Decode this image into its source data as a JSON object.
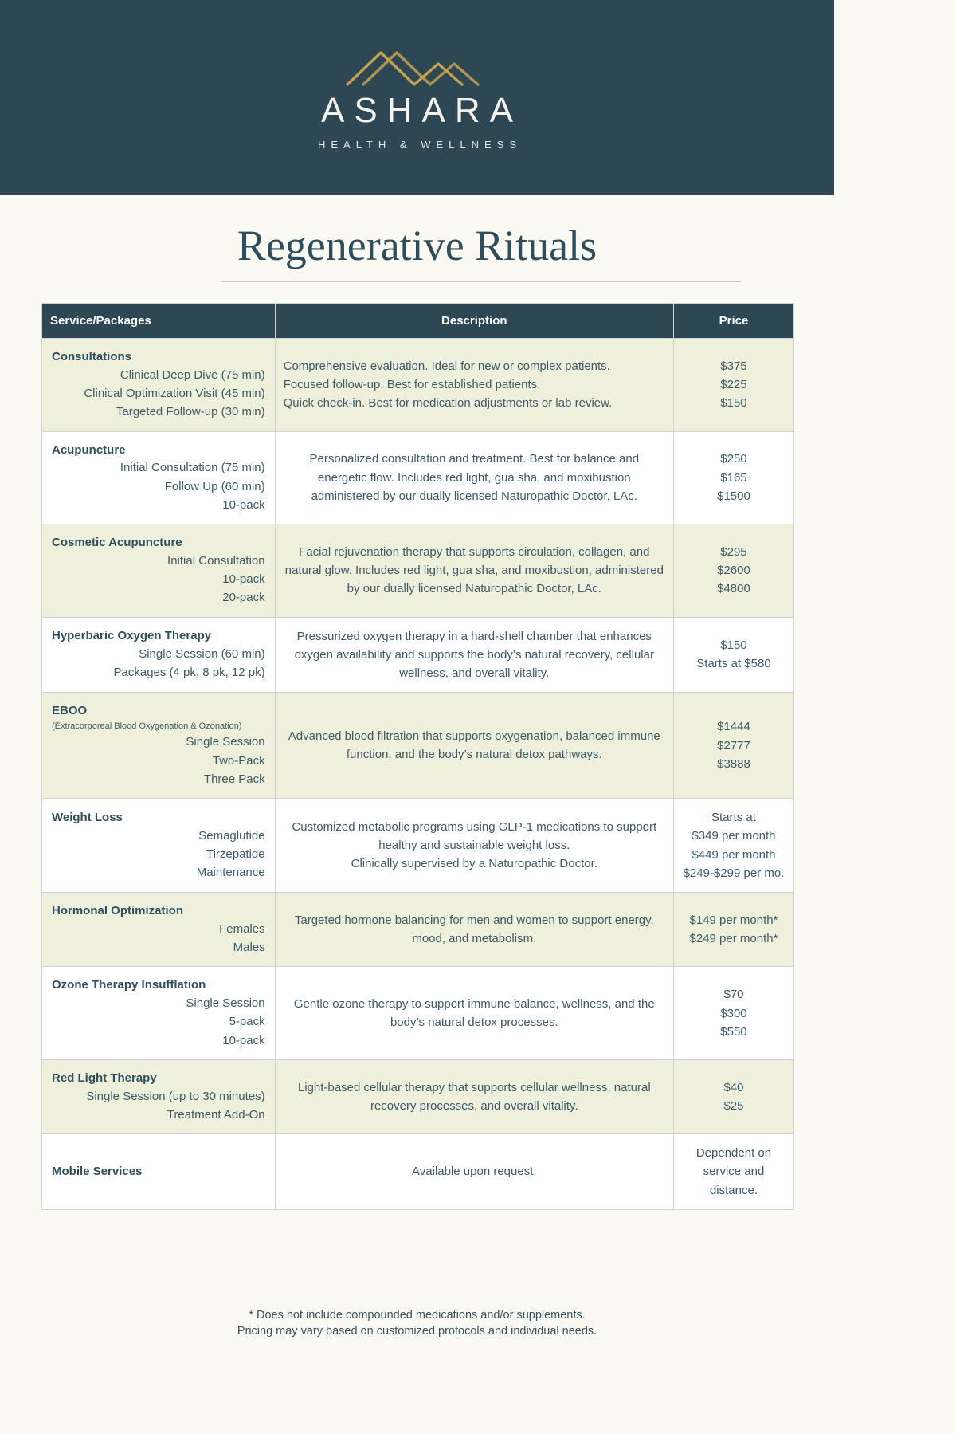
{
  "colors": {
    "brand_slate": "#2d4754",
    "brand_gold": "#c5a24f",
    "shaded_row": "#eff0dc",
    "page_background": "#fbfaf2"
  },
  "header": {
    "brand": "ASHARA",
    "tagline": "HEALTH & WELLNESS"
  },
  "page_title": "Regenerative Rituals",
  "table": {
    "columns": [
      "Service/Packages",
      "Description",
      "Price"
    ],
    "rows": [
      {
        "service_title": "Consultations",
        "service_items": [
          "Clinical Deep Dive (75 min)",
          "Clinical Optimization Visit (45 min)",
          "Targeted Follow-up (30 min)"
        ],
        "description_lines": [
          "Comprehensive evaluation. Ideal for new or complex patients.",
          "Focused follow-up. Best for established patients.",
          "Quick check-in. Best for medication adjustments or lab review."
        ],
        "desc_align": "left",
        "price_lines": [
          "$375",
          "$225",
          "$150"
        ],
        "shaded": true
      },
      {
        "service_title": "Acupuncture",
        "service_items": [
          "Initial Consultation (75 min)",
          "Follow Up (60 min)",
          "10-pack"
        ],
        "description_lines": [
          "Personalized consultation and treatment. Best for balance and energetic flow. Includes red light, gua sha, and moxibustion administered by our dually licensed Naturopathic Doctor, LAc."
        ],
        "desc_align": "center",
        "price_lines": [
          "$250",
          "$165",
          "$1500"
        ],
        "shaded": false
      },
      {
        "service_title": "Cosmetic Acupuncture",
        "service_items": [
          "Initial Consultation",
          "10-pack",
          "20-pack"
        ],
        "description_lines": [
          "Facial rejuvenation therapy that supports circulation, collagen, and natural glow. Includes red light, gua sha, and moxibustion, administered by our dually licensed Naturopathic Doctor, LAc."
        ],
        "desc_align": "center",
        "price_lines": [
          "$295",
          "$2600",
          "$4800"
        ],
        "shaded": true
      },
      {
        "service_title": "Hyperbaric Oxygen Therapy",
        "service_items": [
          "Single Session (60 min)",
          "Packages (4 pk, 8 pk, 12 pk)"
        ],
        "description_lines": [
          "Pressurized oxygen therapy in a hard-shell chamber that enhances oxygen availability and supports the body’s natural recovery, cellular wellness, and overall vitality."
        ],
        "desc_align": "center",
        "price_lines": [
          "$150",
          "Starts at $580"
        ],
        "shaded": false
      },
      {
        "service_title": "EBOO",
        "service_note": "(Extracorporeal Blood Oxygenation & Ozonation)",
        "service_items": [
          "Single Session",
          "Two-Pack",
          "Three Pack"
        ],
        "description_lines": [
          "Advanced blood filtration that supports oxygenation, balanced immune function, and the body’s natural detox pathways."
        ],
        "desc_align": "center",
        "price_lines": [
          "$1444",
          "$2777",
          "$3888"
        ],
        "shaded": true
      },
      {
        "service_title": "Weight Loss",
        "service_items": [
          "Semaglutide",
          "Tirzepatide",
          "Maintenance"
        ],
        "description_lines": [
          "Customized metabolic programs using GLP-1 medications to support healthy and sustainable weight loss.",
          "Clinically supervised by a Naturopathic Doctor."
        ],
        "desc_align": "center",
        "price_lines": [
          "Starts at",
          "$349 per month",
          "$449 per month",
          "$249-$299 per mo."
        ],
        "shaded": false
      },
      {
        "service_title": "Hormonal Optimization",
        "service_items": [
          "Females",
          "Males"
        ],
        "description_lines": [
          "Targeted hormone balancing for men and women to support energy, mood, and metabolism."
        ],
        "desc_align": "center",
        "price_lines": [
          "$149 per month*",
          "$249 per month*"
        ],
        "shaded": true
      },
      {
        "service_title": "Ozone Therapy Insufflation",
        "service_items": [
          "Single Session",
          "5-pack",
          "10-pack"
        ],
        "description_lines": [
          "Gentle ozone therapy to support immune balance, wellness, and the body’s natural detox processes."
        ],
        "desc_align": "center",
        "price_lines": [
          "$70",
          "$300",
          "$550"
        ],
        "shaded": false
      },
      {
        "service_title": "Red Light Therapy",
        "service_items": [
          "Single Session (up to 30 minutes)",
          "Treatment Add-On"
        ],
        "description_lines": [
          "Light-based cellular therapy that supports cellular wellness, natural recovery processes, and overall vitality."
        ],
        "desc_align": "center",
        "price_lines": [
          "$40",
          "$25"
        ],
        "shaded": true
      },
      {
        "service_title": "Mobile Services",
        "service_items": [],
        "description_lines": [
          "Available upon request."
        ],
        "desc_align": "center",
        "price_lines": [
          "Dependent on service and distance."
        ],
        "shaded": false
      }
    ]
  },
  "footer": {
    "line1": "* Does not include compounded medications and/or supplements.",
    "line2": "Pricing may vary based on customized protocols and individual needs."
  }
}
